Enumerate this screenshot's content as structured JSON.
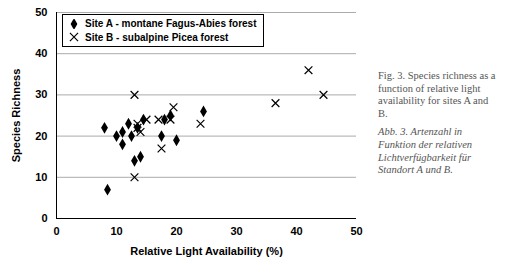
{
  "chart_data": {
    "type": "scatter",
    "x_label": "Relative Light Availability (%)",
    "y_label": "Species Richness",
    "annotations": [
      "Fig. 3. Species richness as a function of relative light availability for sites A and B.",
      "Abb. 3. Artenzahl in Funktion der relativen Lichtverfügbarkeit für Standort A und B."
    ],
    "xlim": [
      0,
      50
    ],
    "xticks": [
      0,
      10,
      20,
      30,
      40,
      50
    ],
    "ylim": [
      0,
      50
    ],
    "yticks": [
      0,
      10,
      20,
      30,
      40,
      50
    ],
    "grid": true,
    "legend": "top-left",
    "series": [
      {
        "name": "Site A - montane Fagus-Abies forest",
        "color": "#000000",
        "marker": "diamond",
        "x": [
          8,
          8.5,
          10,
          11,
          11,
          12,
          12.5,
          13,
          13.5,
          14,
          14.5,
          17.5,
          18,
          19,
          20,
          24.5
        ],
        "values": [
          22,
          7,
          20,
          21,
          18,
          23,
          20,
          14,
          22,
          15,
          24,
          20,
          24,
          25,
          19,
          26
        ]
      },
      {
        "name": "Site B - subalpine Picea forest",
        "color": "#000000",
        "marker": "times",
        "x": [
          13,
          13,
          13.5,
          13.5,
          14,
          15,
          17,
          17.5,
          19,
          19.5,
          24,
          36.5,
          42,
          44.5
        ],
        "values": [
          30,
          10,
          23,
          22,
          21,
          24,
          24,
          17,
          24,
          27,
          23,
          28,
          36,
          30
        ]
      }
    ]
  }
}
